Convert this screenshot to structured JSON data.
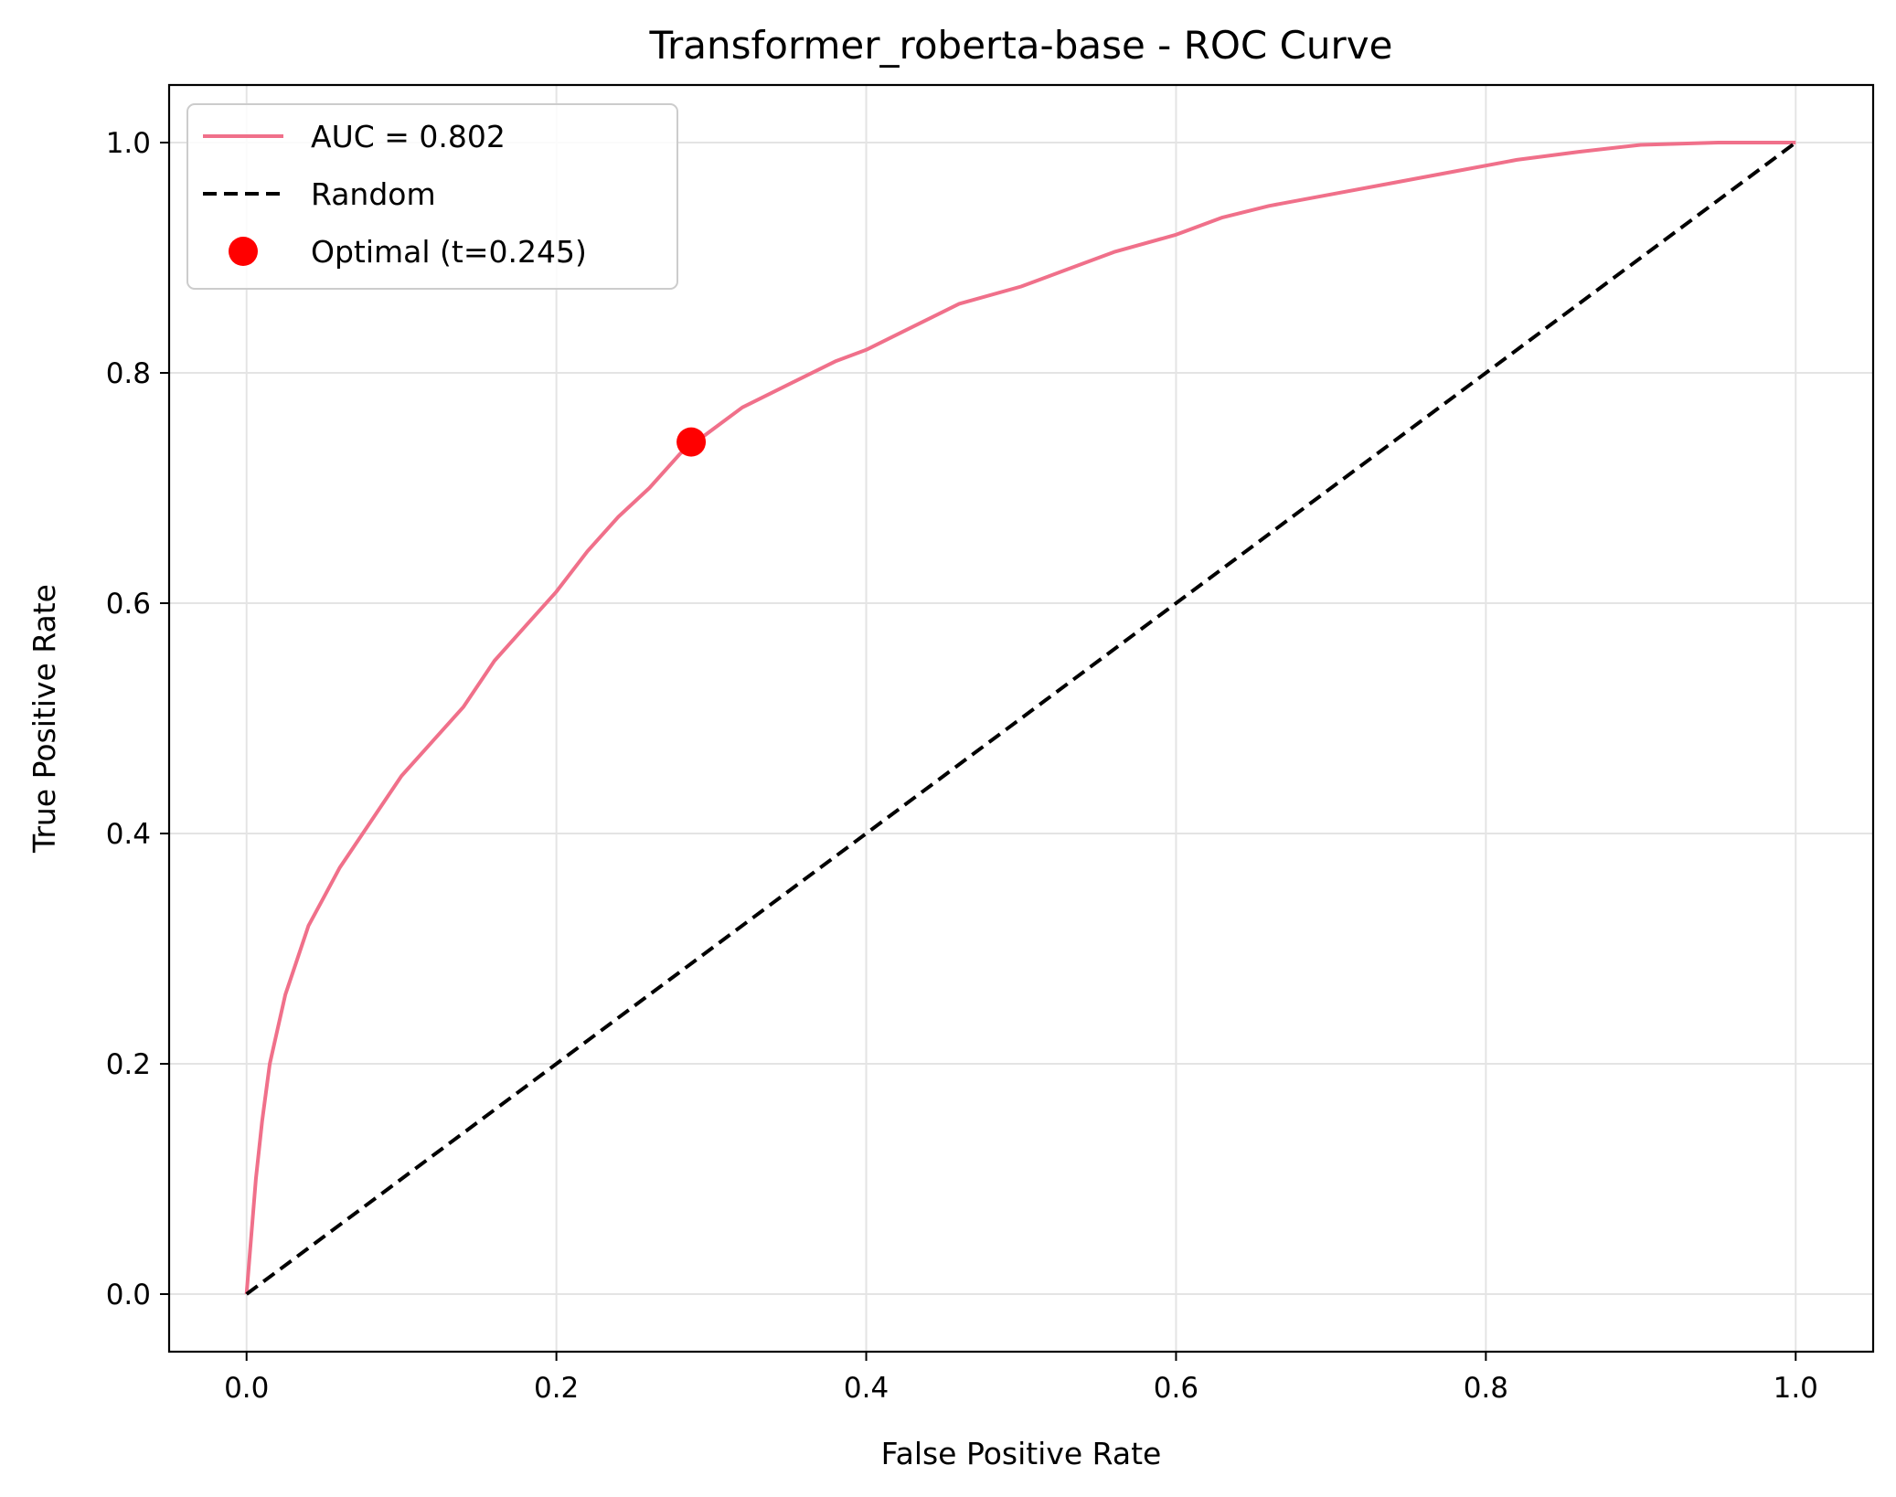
{
  "chart_data": {
    "type": "line",
    "title": "Transformer_roberta-base - ROC Curve",
    "xlabel": "False Positive Rate",
    "ylabel": "True Positive Rate",
    "xlim": [
      -0.05,
      1.05
    ],
    "ylim": [
      -0.05,
      1.05
    ],
    "xticks": [
      0.0,
      0.2,
      0.4,
      0.6,
      0.8,
      1.0
    ],
    "yticks": [
      0.0,
      0.2,
      0.4,
      0.6,
      0.8,
      1.0
    ],
    "xtick_labels": [
      "0.0",
      "0.2",
      "0.4",
      "0.6",
      "0.8",
      "1.0"
    ],
    "ytick_labels": [
      "0.0",
      "0.2",
      "0.4",
      "0.6",
      "0.8",
      "1.0"
    ],
    "grid": true,
    "legend_position": "top-left",
    "series": [
      {
        "name": "AUC = 0.802",
        "style": "solid",
        "color": "#f0708a",
        "points": [
          [
            0.0,
            0.0
          ],
          [
            0.003,
            0.05
          ],
          [
            0.006,
            0.1
          ],
          [
            0.01,
            0.15
          ],
          [
            0.015,
            0.2
          ],
          [
            0.02,
            0.23
          ],
          [
            0.025,
            0.26
          ],
          [
            0.03,
            0.28
          ],
          [
            0.04,
            0.32
          ],
          [
            0.05,
            0.345
          ],
          [
            0.06,
            0.37
          ],
          [
            0.07,
            0.39
          ],
          [
            0.08,
            0.41
          ],
          [
            0.09,
            0.43
          ],
          [
            0.1,
            0.45
          ],
          [
            0.12,
            0.48
          ],
          [
            0.14,
            0.51
          ],
          [
            0.16,
            0.55
          ],
          [
            0.18,
            0.58
          ],
          [
            0.2,
            0.61
          ],
          [
            0.22,
            0.645
          ],
          [
            0.24,
            0.675
          ],
          [
            0.26,
            0.7
          ],
          [
            0.28,
            0.73
          ],
          [
            0.3,
            0.75
          ],
          [
            0.32,
            0.77
          ],
          [
            0.35,
            0.79
          ],
          [
            0.38,
            0.81
          ],
          [
            0.4,
            0.82
          ],
          [
            0.43,
            0.84
          ],
          [
            0.46,
            0.86
          ],
          [
            0.5,
            0.875
          ],
          [
            0.53,
            0.89
          ],
          [
            0.56,
            0.905
          ],
          [
            0.6,
            0.92
          ],
          [
            0.63,
            0.935
          ],
          [
            0.66,
            0.945
          ],
          [
            0.7,
            0.955
          ],
          [
            0.74,
            0.965
          ],
          [
            0.78,
            0.975
          ],
          [
            0.82,
            0.985
          ],
          [
            0.86,
            0.992
          ],
          [
            0.9,
            0.998
          ],
          [
            0.95,
            1.0
          ],
          [
            1.0,
            1.0
          ]
        ]
      },
      {
        "name": "Random",
        "style": "dashed",
        "color": "#000000",
        "points": [
          [
            0.0,
            0.0
          ],
          [
            1.0,
            1.0
          ]
        ]
      }
    ],
    "markers": [
      {
        "name": "Optimal (t=0.245)",
        "x": 0.287,
        "y": 0.74,
        "color": "#ff0000"
      }
    ]
  }
}
